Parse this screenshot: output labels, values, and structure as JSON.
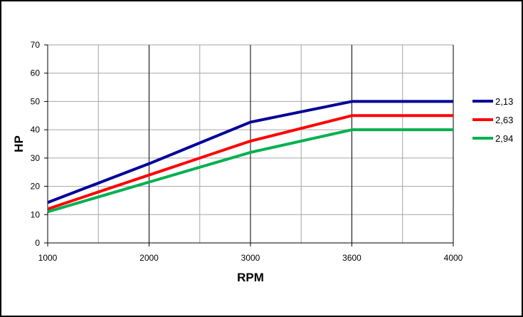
{
  "chart_data": {
    "type": "line",
    "title": "",
    "xlabel": "RPM",
    "ylabel": "HP",
    "categories": [
      "1000",
      "2000",
      "3000",
      "3600",
      "4000"
    ],
    "x": [
      1000,
      2000,
      3000,
      3600,
      4000
    ],
    "ylim": [
      0,
      70
    ],
    "yticks": [
      "0",
      "10",
      "20",
      "30",
      "40",
      "50",
      "60",
      "70"
    ],
    "grid": true,
    "legend_position": "right",
    "series": [
      {
        "name": "2,13",
        "color": "#000099",
        "values": [
          14.3,
          28,
          42.7,
          50,
          50
        ]
      },
      {
        "name": "2,63",
        "color": "#ff0000",
        "values": [
          12,
          24,
          36,
          45,
          45
        ]
      },
      {
        "name": "2,94",
        "color": "#00b050",
        "values": [
          11,
          21.5,
          32,
          40,
          40
        ]
      }
    ]
  }
}
